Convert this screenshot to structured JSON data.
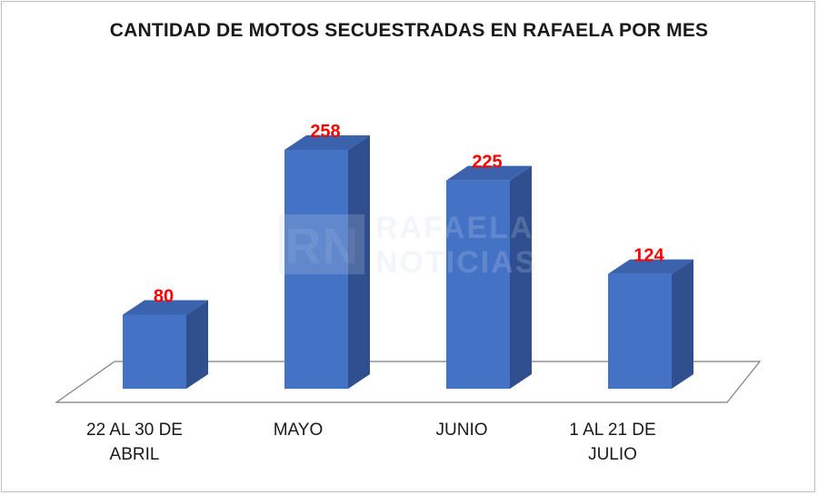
{
  "chart_data": {
    "type": "bar",
    "title": "CANTIDAD DE MOTOS SECUESTRADAS EN RAFAELA POR MES",
    "categories": [
      "22 AL 30 DE\nABRIL",
      "MAYO",
      "JUNIO",
      "1 AL 21 DE\nJULIO"
    ],
    "values": [
      80,
      258,
      225,
      124
    ],
    "xlabel": "",
    "ylabel": "",
    "ylim": [
      0,
      258
    ],
    "grid": false,
    "legend": "none",
    "bar_color": "#4472c4",
    "bar_side_color": "#2f4f8f",
    "bar_top_color": "#3a62ad",
    "label_color": "#ff0000"
  },
  "watermark": {
    "text": "RAFAELA\nNOTICIAS",
    "logo_letters": "RN"
  }
}
